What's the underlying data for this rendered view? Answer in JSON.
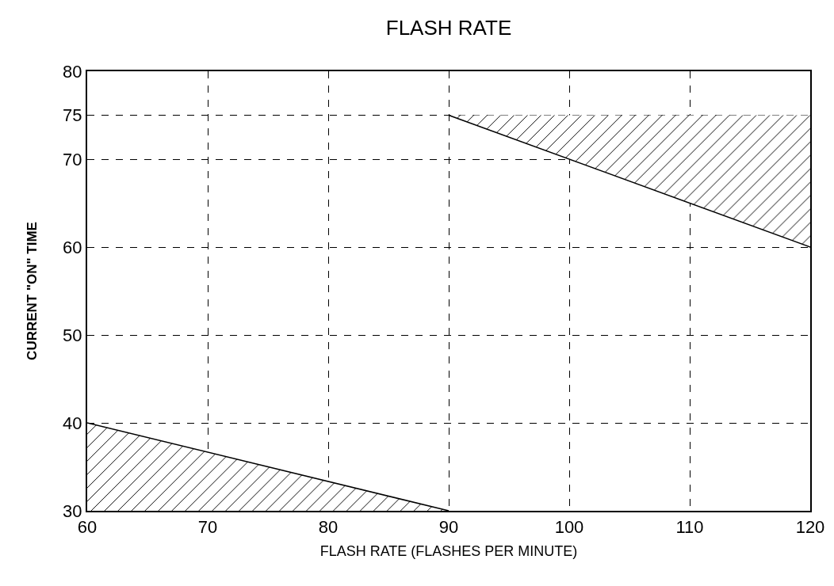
{
  "chart_data": {
    "type": "area",
    "title": "FLASH RATE",
    "xlabel": "FLASH RATE (FLASHES PER MINUTE)",
    "ylabel": "CURRENT \"ON\" TIME",
    "xlim": [
      60,
      120
    ],
    "ylim": [
      30,
      80
    ],
    "xticks": [
      60,
      70,
      80,
      90,
      100,
      110,
      120
    ],
    "yticks": [
      30,
      40,
      50,
      60,
      70,
      75,
      80
    ],
    "grid": true,
    "series": [
      {
        "color": "#000000",
        "x": [
          60,
          90
        ],
        "values": [
          40,
          30
        ]
      },
      {
        "type": "line",
        "color": "#000000",
        "x": [
          90,
          120
        ],
        "values": [
          75,
          60
        ],
        "lower": [
          75,
          60
        ],
        "upper": [
          75,
          75
        ]
      }
    ]
  }
}
